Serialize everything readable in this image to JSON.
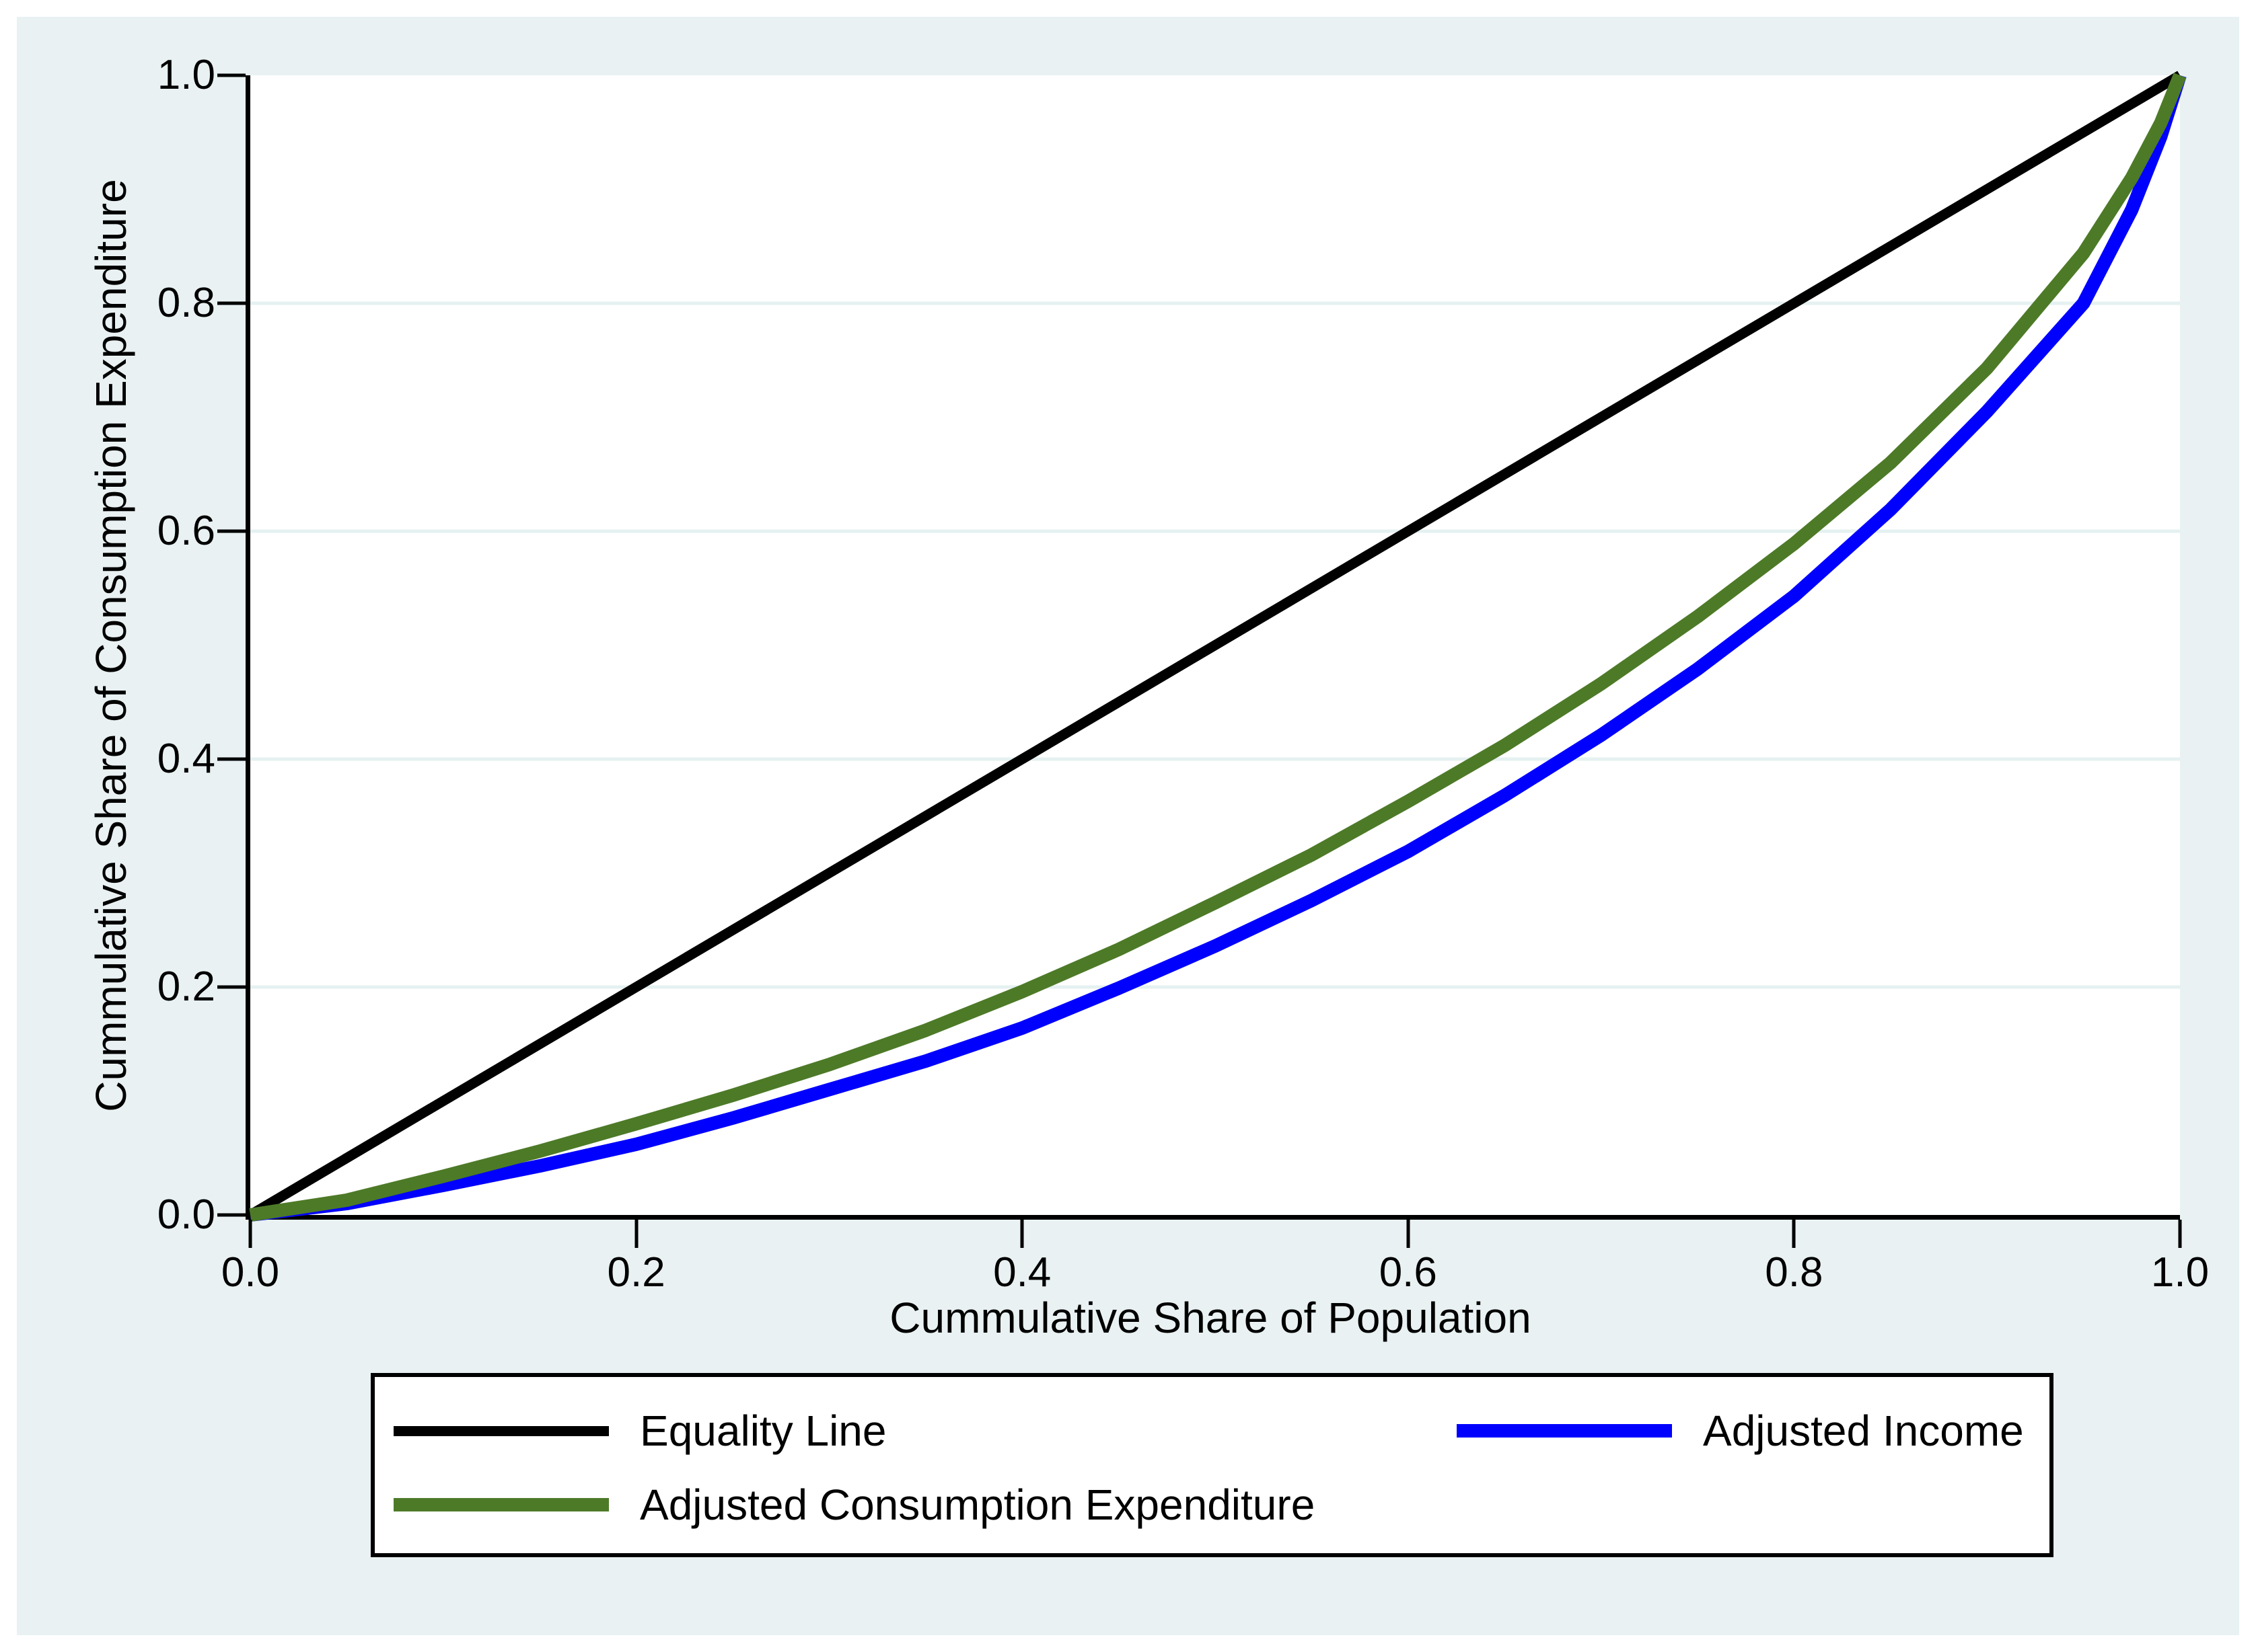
{
  "colors": {
    "page_background": "#ffffff",
    "canvas_background": "#e9f1f2",
    "plot_background": "#ffffff",
    "gridline": "#e6f0f0",
    "axis": "#000000",
    "equality_line": "#000000",
    "adjusted_income": "#0000ff",
    "adjusted_consumption_expenditure": "#4d7a27"
  },
  "chart_data": {
    "type": "line",
    "title": "",
    "xlabel": "Cummulative Share of Population",
    "ylabel": "Cummulative Share of Consumption Expenditure",
    "xlim": [
      0,
      1
    ],
    "ylim": [
      0,
      1
    ],
    "grid": "horizontal-only",
    "legend_position": "bottom-box",
    "x_ticks": [
      {
        "value": 0.0,
        "label": "0.0"
      },
      {
        "value": 0.2,
        "label": "0.2"
      },
      {
        "value": 0.4,
        "label": "0.4"
      },
      {
        "value": 0.6,
        "label": "0.6"
      },
      {
        "value": 0.8,
        "label": "0.8"
      },
      {
        "value": 1.0,
        "label": "1.0"
      }
    ],
    "y_ticks": [
      {
        "value": 0.0,
        "label": "0.0"
      },
      {
        "value": 0.2,
        "label": "0.2"
      },
      {
        "value": 0.4,
        "label": "0.4"
      },
      {
        "value": 0.6,
        "label": "0.6"
      },
      {
        "value": 0.8,
        "label": "0.8"
      },
      {
        "value": 1.0,
        "label": "1.0"
      }
    ],
    "y_gridlines": [
      0.2,
      0.4,
      0.6,
      0.8
    ],
    "series": [
      {
        "id": "equality-line",
        "name": "Equality Line",
        "color": "#000000",
        "line_width": 15,
        "points": [
          [
            0,
            0
          ],
          [
            1,
            1
          ]
        ]
      },
      {
        "id": "adjusted-income",
        "name": "Adjusted Income",
        "color": "#0000ff",
        "line_width": 20,
        "points": [
          [
            0,
            0
          ],
          [
            0.05,
            0.01
          ],
          [
            0.1,
            0.026
          ],
          [
            0.15,
            0.043
          ],
          [
            0.2,
            0.062
          ],
          [
            0.25,
            0.085
          ],
          [
            0.3,
            0.11
          ],
          [
            0.35,
            0.135
          ],
          [
            0.4,
            0.164
          ],
          [
            0.45,
            0.199
          ],
          [
            0.5,
            0.236
          ],
          [
            0.55,
            0.276
          ],
          [
            0.6,
            0.319
          ],
          [
            0.65,
            0.368
          ],
          [
            0.7,
            0.421
          ],
          [
            0.75,
            0.479
          ],
          [
            0.8,
            0.543
          ],
          [
            0.85,
            0.619
          ],
          [
            0.9,
            0.705
          ],
          [
            0.95,
            0.8
          ],
          [
            0.975,
            0.882
          ],
          [
            0.99,
            0.946
          ],
          [
            1,
            1
          ]
        ]
      },
      {
        "id": "adjusted-consumption-expenditure",
        "name": "Adjusted Consumption Expenditure",
        "color": "#4d7a27",
        "line_width": 20,
        "points": [
          [
            0,
            0
          ],
          [
            0.05,
            0.013
          ],
          [
            0.1,
            0.034
          ],
          [
            0.15,
            0.056
          ],
          [
            0.2,
            0.08
          ],
          [
            0.25,
            0.105
          ],
          [
            0.3,
            0.132
          ],
          [
            0.35,
            0.162
          ],
          [
            0.4,
            0.196
          ],
          [
            0.45,
            0.233
          ],
          [
            0.5,
            0.274
          ],
          [
            0.55,
            0.316
          ],
          [
            0.6,
            0.363
          ],
          [
            0.65,
            0.412
          ],
          [
            0.7,
            0.466
          ],
          [
            0.75,
            0.525
          ],
          [
            0.8,
            0.589
          ],
          [
            0.85,
            0.66
          ],
          [
            0.9,
            0.743
          ],
          [
            0.95,
            0.844
          ],
          [
            0.975,
            0.91
          ],
          [
            0.99,
            0.958
          ],
          [
            1,
            1
          ]
        ]
      }
    ]
  }
}
